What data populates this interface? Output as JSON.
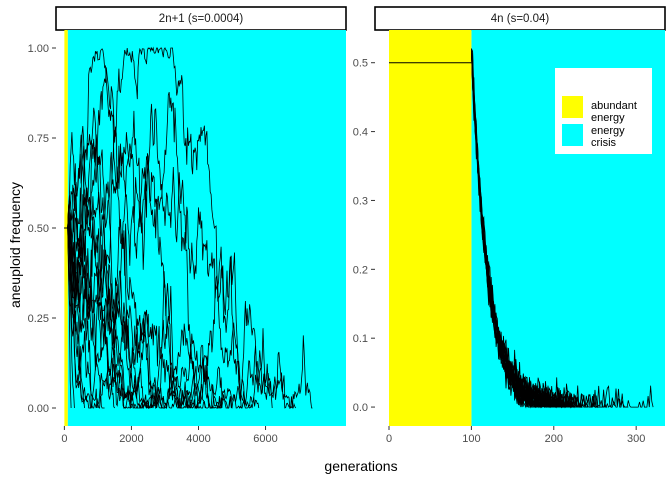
{
  "chart_data": {
    "type": "line",
    "ylabel": "aneuploid frequency",
    "xlabel": "generations",
    "colors": {
      "abundant": "#FFFF00",
      "crisis": "#00FFFF",
      "line": "#000000"
    },
    "legend": {
      "placement": "top-right of right panel",
      "entries": [
        {
          "label_lines": [
            "abundant",
            "energy"
          ],
          "color": "#FFFF00"
        },
        {
          "label_lines": [
            "energy",
            "crisis"
          ],
          "color": "#00FFFF"
        }
      ]
    },
    "panels": [
      {
        "strip_label": "2n+1 (s=0.0004)",
        "xlim": [
          -250,
          8400
        ],
        "ylim": [
          -0.05,
          1.05
        ],
        "xticks": [
          0,
          2000,
          4000,
          6000
        ],
        "yticks": [
          0.0,
          0.25,
          0.5,
          0.75,
          1.0
        ],
        "ytick_labels": [
          "0.00",
          "0.25",
          "0.50",
          "0.75",
          "1.00"
        ],
        "abundant_until": 100,
        "initial_frequency": 0.5,
        "n_series": 20,
        "series_endpoints_generations": [
          180,
          300,
          600,
          800,
          1200,
          1500,
          2000,
          2300,
          2600,
          3000,
          3500,
          3900,
          4200,
          4700,
          5000,
          5300,
          5800,
          6200,
          6900,
          7400
        ]
      },
      {
        "strip_label": "4n (s=0.04)",
        "xlim": [
          -17,
          335
        ],
        "ylim": [
          -0.0275,
          0.5475
        ],
        "xticks": [
          0,
          100,
          200,
          300
        ],
        "yticks": [
          0.0,
          0.1,
          0.2,
          0.3,
          0.4,
          0.5
        ],
        "ytick_labels": [
          "0.0",
          "0.1",
          "0.2",
          "0.3",
          "0.4",
          "0.5"
        ],
        "abundant_until": 100,
        "initial_frequency": 0.5,
        "peak_frequency": 0.52,
        "n_series": 20,
        "decline_rate": 0.05,
        "series_endpoints_generations": [
          180,
          190,
          195,
          200,
          205,
          210,
          212,
          215,
          218,
          220,
          222,
          225,
          228,
          230,
          235,
          240,
          250,
          265,
          290,
          320
        ]
      }
    ]
  }
}
